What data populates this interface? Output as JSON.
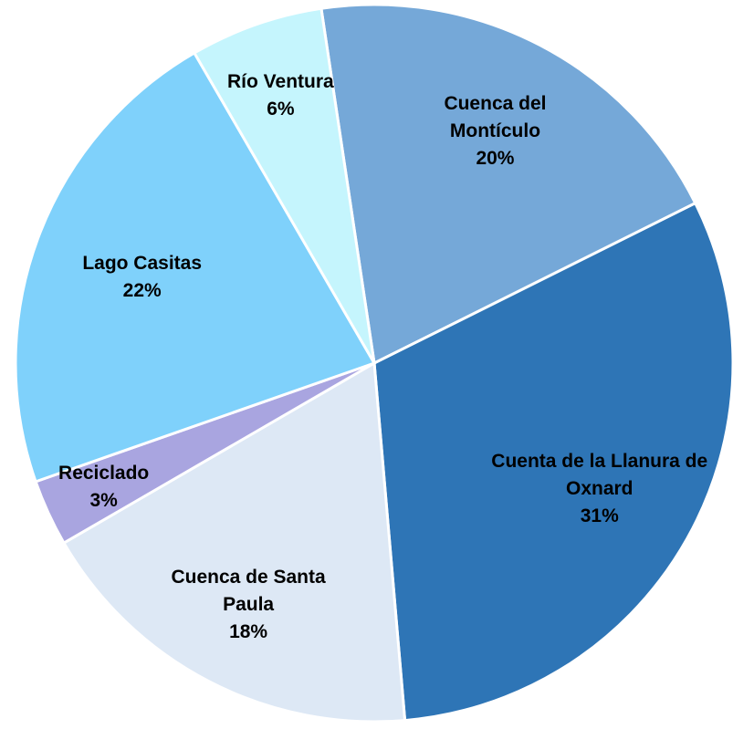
{
  "chart_data": {
    "type": "pie",
    "categories": [
      "Cuenca del Montículo",
      "Cuenta de la Llanura de Oxnard",
      "Cuenca de Santa Paula",
      "Reciclado",
      "Lago Casitas",
      "Río Ventura"
    ],
    "values": [
      20,
      31,
      18,
      3,
      22,
      6
    ],
    "value_labels": [
      "20%",
      "31%",
      "18%",
      "3%",
      "22%",
      "6%"
    ],
    "colors": [
      "#75a8d8",
      "#2e75b6",
      "#dde8f5",
      "#a9a5e0",
      "#7fd1fb",
      "#c5f5fd"
    ]
  }
}
